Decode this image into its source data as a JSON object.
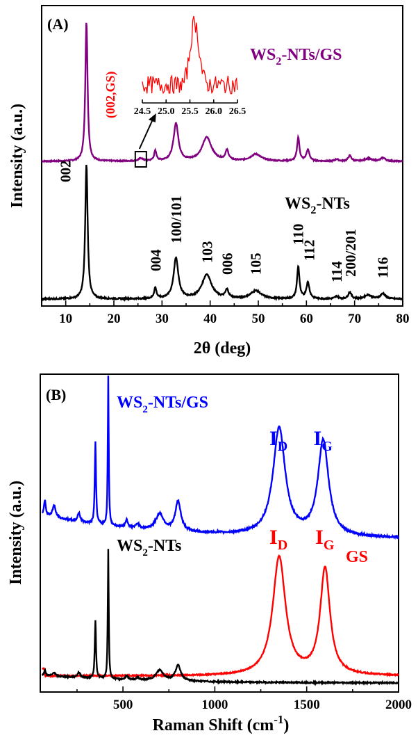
{
  "chart_data": [
    {
      "type": "line",
      "panel_label": "(A)",
      "xlabel": "2θ (deg)",
      "ylabel": "Intensity (a.u.)",
      "xlim": [
        5,
        80
      ],
      "xticks": [
        "10",
        "20",
        "30",
        "40",
        "50",
        "60",
        "70",
        "80"
      ],
      "yticks": [],
      "grid": false,
      "colors": {
        "ws2_nts_gs": "#800080",
        "ws2_nts": "#000000",
        "inset": "#ff0000"
      },
      "series": [
        {
          "name": "WS2-NTs/GS",
          "label_main": "WS",
          "label_sub": "2",
          "label_tail": "-NTs/GS",
          "color": "#800080",
          "baseline": 0.0,
          "peaks": [
            [
              14.3,
              1.0,
              0.28
            ],
            [
              25.6,
              0.02,
              0.5
            ],
            [
              28.6,
              0.07,
              0.3
            ],
            [
              32.9,
              0.27,
              0.6
            ],
            [
              39.3,
              0.17,
              1.2
            ],
            [
              43.5,
              0.07,
              0.4
            ],
            [
              49.5,
              0.05,
              1.3
            ],
            [
              58.3,
              0.17,
              0.3
            ],
            [
              60.3,
              0.08,
              0.4
            ],
            [
              66.3,
              0.015,
              0.4
            ],
            [
              69.0,
              0.04,
              0.4
            ],
            [
              72.8,
              0.02,
              0.8
            ],
            [
              75.9,
              0.025,
              0.6
            ]
          ]
        },
        {
          "name": "WS2-NTs",
          "label_main": "WS",
          "label_sub": "2",
          "label_tail": "-NTs",
          "color": "#000000",
          "baseline": 0.0,
          "peaks": [
            [
              14.3,
              1.0,
              0.3
            ],
            [
              28.6,
              0.08,
              0.3
            ],
            [
              32.9,
              0.3,
              0.6
            ],
            [
              39.3,
              0.18,
              1.2
            ],
            [
              43.5,
              0.06,
              0.4
            ],
            [
              49.5,
              0.06,
              1.3
            ],
            [
              58.3,
              0.24,
              0.3
            ],
            [
              60.3,
              0.12,
              0.4
            ],
            [
              66.3,
              0.02,
              0.4
            ],
            [
              69.0,
              0.05,
              0.4
            ],
            [
              72.8,
              0.03,
              0.8
            ],
            [
              75.9,
              0.04,
              0.6
            ]
          ]
        }
      ],
      "peak_labels": [
        {
          "text": "002",
          "x": 10
        },
        {
          "text": "004",
          "x": 28.7
        },
        {
          "text": "100/101",
          "x": 33
        },
        {
          "text": "103",
          "x": 39.4
        },
        {
          "text": "006",
          "x": 43.6
        },
        {
          "text": "105",
          "x": 49.5
        },
        {
          "text": "110",
          "x": 58.3
        },
        {
          "text": "112",
          "x": 60.6
        },
        {
          "text": "114",
          "x": 66.3
        },
        {
          "text": "200/201",
          "x": 69.2
        },
        {
          "text": "116",
          "x": 75.9
        }
      ],
      "annotation": "(002,GS)",
      "inset": {
        "xlim": [
          24.5,
          26.5
        ],
        "xticks": [
          "24.5",
          "25.0",
          "25.5",
          "26.0",
          "26.5"
        ],
        "peak_center": 25.6,
        "box_x": 25.6
      }
    },
    {
      "type": "line",
      "panel_label": "(B)",
      "xlabel_main": "Raman Shift (cm",
      "xlabel_sup": "-1",
      "xlabel_tail": ")",
      "ylabel": "Intensity (a.u.)",
      "xlim": [
        50,
        2000
      ],
      "xticks": [
        "500",
        "1000",
        "1500",
        "2000"
      ],
      "yticks": [],
      "grid": false,
      "colors": {
        "ws2_nts_gs": "#0000ff",
        "ws2_nts": "#000000",
        "gs": "#ff0000"
      },
      "series": [
        {
          "name": "WS2-NTs/GS",
          "label_main": "WS",
          "label_sub": "2",
          "label_tail": "-NTs/GS",
          "color": "#0000ff",
          "peaks": [
            [
              75,
              0.1,
              6
            ],
            [
              125,
              0.08,
              10
            ],
            [
              260,
              0.06,
              8
            ],
            [
              350,
              0.55,
              4
            ],
            [
              420,
              1.0,
              3
            ],
            [
              520,
              0.05,
              8
            ],
            [
              580,
              0.03,
              10
            ],
            [
              700,
              0.11,
              25
            ],
            [
              800,
              0.2,
              18
            ],
            [
              1350,
              0.72,
              40
            ],
            [
              1590,
              0.64,
              35
            ]
          ]
        },
        {
          "name": "WS2-NTs",
          "label_main": "WS",
          "label_sub": "2",
          "label_tail": "-NTs",
          "color": "#000000",
          "peaks": [
            [
              75,
              0.04,
              5
            ],
            [
              125,
              0.03,
              8
            ],
            [
              260,
              0.04,
              10
            ],
            [
              350,
              0.45,
              4
            ],
            [
              420,
              1.0,
              3
            ],
            [
              520,
              0.03,
              8
            ],
            [
              580,
              0.02,
              8
            ],
            [
              700,
              0.08,
              25
            ],
            [
              800,
              0.12,
              18
            ]
          ]
        },
        {
          "name": "GS",
          "label_main": "GS",
          "color": "#ff0000",
          "peaks": [
            [
              1350,
              1.0,
              42
            ],
            [
              1600,
              0.9,
              32
            ]
          ]
        }
      ],
      "band_labels": [
        {
          "base": "I",
          "sub": "D",
          "x": 1350,
          "series": "WS2-NTs/GS"
        },
        {
          "base": "I",
          "sub": "G",
          "x": 1590,
          "series": "WS2-NTs/GS"
        },
        {
          "base": "I",
          "sub": "D",
          "x": 1350,
          "series": "GS"
        },
        {
          "base": "I",
          "sub": "G",
          "x": 1600,
          "series": "GS"
        }
      ]
    }
  ]
}
